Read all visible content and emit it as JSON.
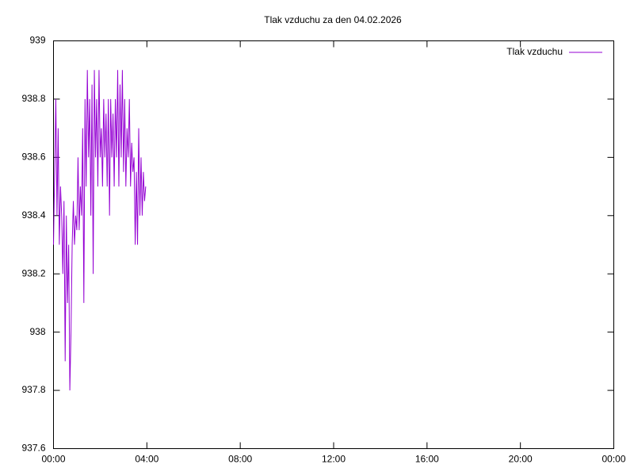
{
  "chart_data": {
    "type": "line",
    "title": "Tlak vzduchu za den 04.02.2026",
    "x": [
      0,
      0.05,
      0.1,
      0.15,
      0.2,
      0.25,
      0.3,
      0.35,
      0.4,
      0.45,
      0.5,
      0.55,
      0.6,
      0.65,
      0.7,
      0.75,
      0.8,
      0.85,
      0.9,
      0.95,
      1,
      1.05,
      1.1,
      1.15,
      1.2,
      1.25,
      1.3,
      1.35,
      1.4,
      1.45,
      1.5,
      1.55,
      1.6,
      1.65,
      1.7,
      1.75,
      1.8,
      1.85,
      1.9,
      1.95,
      2,
      2.05,
      2.1,
      2.15,
      2.2,
      2.25,
      2.3,
      2.35,
      2.4,
      2.45,
      2.5,
      2.55,
      2.6,
      2.65,
      2.7,
      2.75,
      2.8,
      2.85,
      2.9,
      2.95,
      3,
      3.05,
      3.1,
      3.15,
      3.2,
      3.25,
      3.3,
      3.35,
      3.4,
      3.45,
      3.5,
      3.55,
      3.6,
      3.65,
      3.7,
      3.75,
      3.8,
      3.85,
      3.9,
      3.95
    ],
    "series": [
      {
        "name": "Tlak vzduchu",
        "color": "#9400d3",
        "values": [
          938.3,
          938.55,
          938.8,
          938.4,
          938.7,
          938.3,
          938.5,
          938.4,
          938.2,
          938.45,
          937.9,
          938.4,
          938.1,
          938.3,
          937.8,
          938.0,
          938.3,
          938.45,
          938.3,
          938.4,
          938.35,
          938.6,
          938.35,
          938.5,
          938.4,
          938.7,
          938.1,
          938.8,
          938.5,
          938.9,
          938.6,
          938.8,
          938.4,
          938.85,
          938.2,
          938.9,
          938.6,
          938.8,
          938.5,
          938.9,
          938.6,
          938.7,
          938.5,
          938.8,
          938.6,
          938.75,
          938.5,
          938.8,
          938.4,
          938.8,
          938.6,
          938.75,
          938.5,
          938.8,
          938.6,
          938.9,
          938.5,
          938.85,
          938.6,
          938.9,
          938.55,
          938.8,
          938.5,
          938.7,
          938.6,
          938.8,
          938.5,
          938.65,
          938.55,
          938.6,
          938.3,
          938.55,
          938.3,
          938.7,
          938.4,
          938.6,
          938.4,
          938.55,
          938.45,
          938.5
        ]
      }
    ],
    "xlim": [
      0,
      24
    ],
    "xticks": [
      {
        "value": 0,
        "label": "00:00"
      },
      {
        "value": 4,
        "label": "04:00"
      },
      {
        "value": 8,
        "label": "08:00"
      },
      {
        "value": 12,
        "label": "12:00"
      },
      {
        "value": 16,
        "label": "16:00"
      },
      {
        "value": 20,
        "label": "20:00"
      },
      {
        "value": 24,
        "label": "00:00"
      }
    ],
    "ylim": [
      937.6,
      939
    ],
    "yticks": [
      937.6,
      937.8,
      938,
      938.2,
      938.4,
      938.6,
      938.8,
      939
    ],
    "grid": false,
    "legend": "top-right"
  }
}
